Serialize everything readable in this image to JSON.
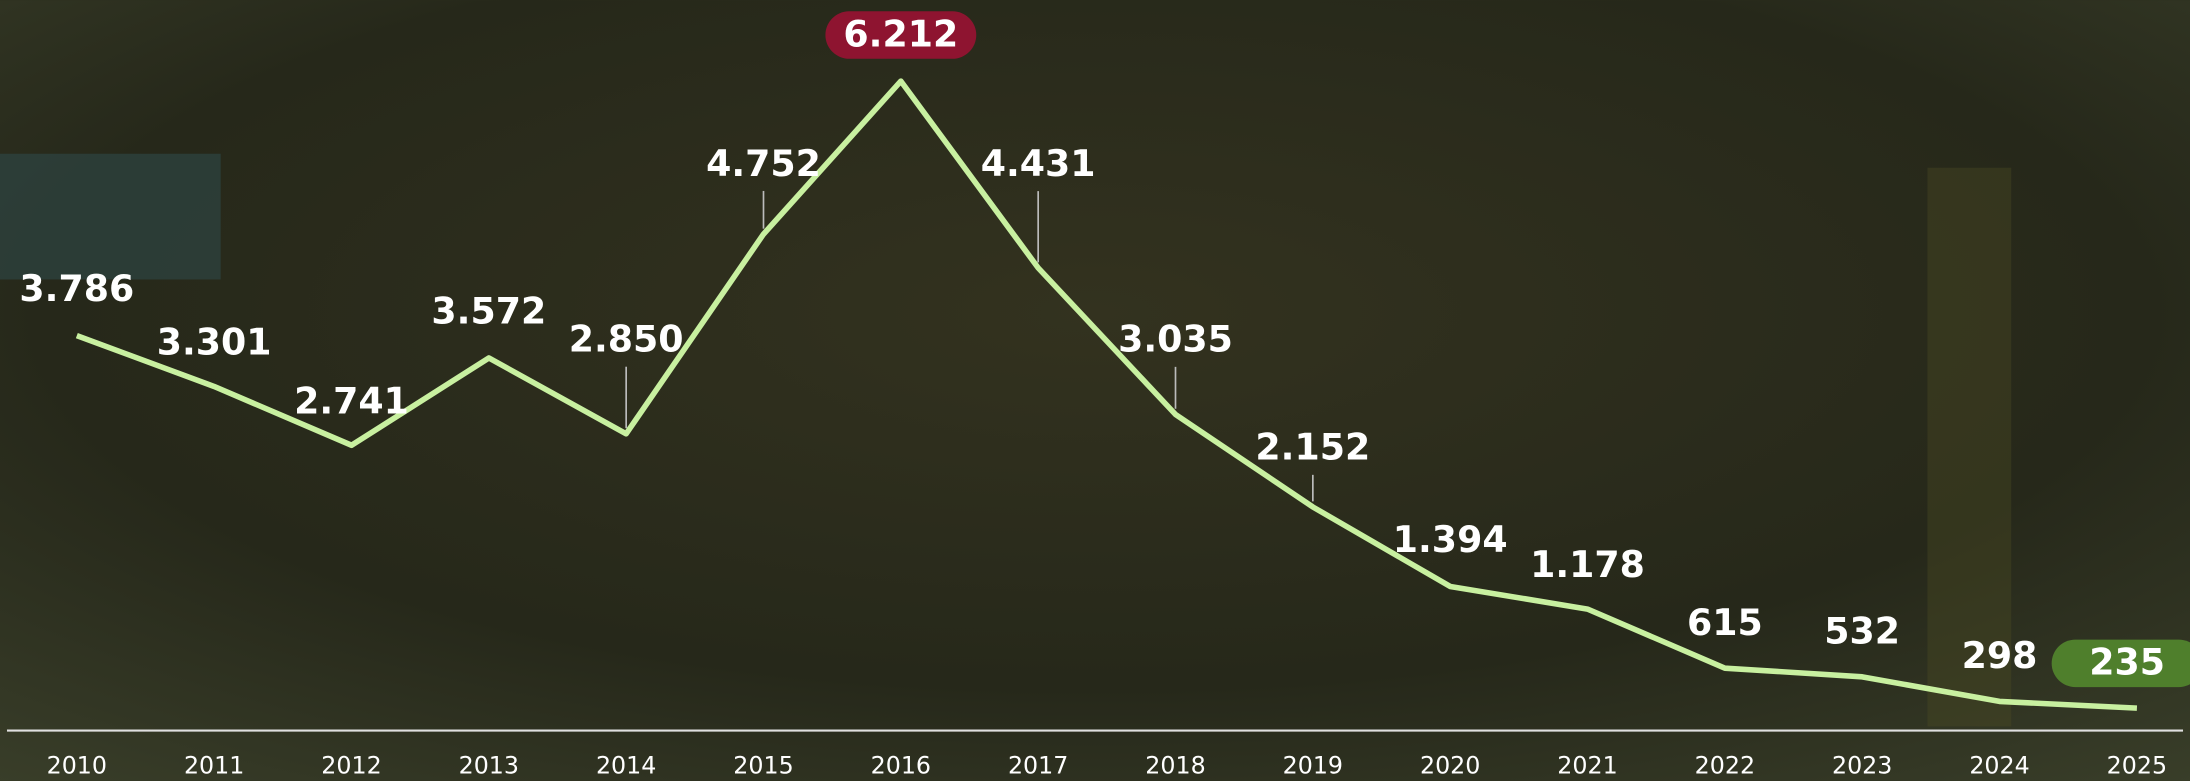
{
  "chart_data": {
    "type": "line",
    "categories": [
      "2010",
      "2011",
      "2012",
      "2013",
      "2014",
      "2015",
      "2016",
      "2017",
      "2018",
      "2019",
      "2020",
      "2021",
      "2022",
      "2023",
      "2024",
      "2025"
    ],
    "values": [
      3786,
      3301,
      2741,
      3572,
      2850,
      4752,
      6212,
      4431,
      3035,
      2152,
      1394,
      1178,
      615,
      532,
      298,
      235
    ],
    "value_labels": [
      "3.786",
      "3.301",
      "2.741",
      "3.572",
      "2.850",
      "4.752",
      "6.212",
      "4.431",
      "3.035",
      "2.152",
      "1.394",
      "1.178",
      "615",
      "532",
      "298",
      "235"
    ],
    "color": "#c8f0a0",
    "max_color": "#8e1430",
    "last_color": "#4f7f2c"
  }
}
